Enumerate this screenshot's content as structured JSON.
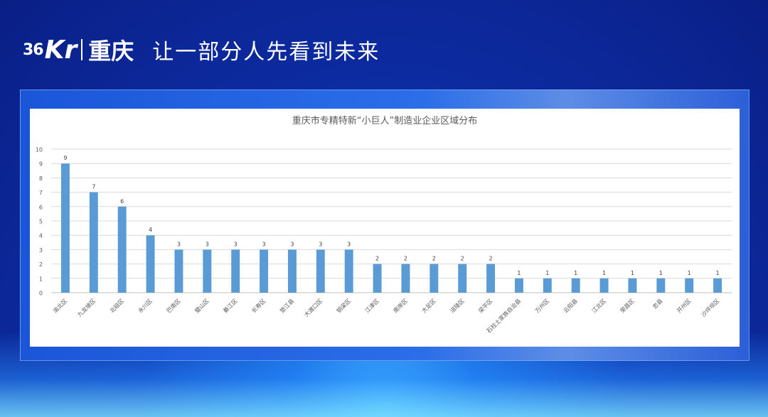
{
  "header": {
    "logo_36": "36",
    "logo_kr": "Kr",
    "logo_city": "重庆",
    "slogan": "让一部分人先看到未来"
  },
  "chart_data": {
    "type": "bar",
    "title": "重庆市专精特新“小巨人”制造业企业区域分布",
    "categories": [
      "渝北区",
      "九龙坡区",
      "北碚区",
      "永川区",
      "巴南区",
      "璧山区",
      "綦江区",
      "长寿区",
      "垫江县",
      "大渡口区",
      "铜梁区",
      "江津区",
      "南岸区",
      "大足区",
      "涪陵区",
      "梁平区",
      "石柱土家族自治县",
      "万州区",
      "云阳县",
      "江北区",
      "荣昌区",
      "忠县",
      "开州区",
      "沙坪坝区"
    ],
    "values": [
      9,
      7,
      6,
      4,
      3,
      3,
      3,
      3,
      3,
      3,
      3,
      2,
      2,
      2,
      2,
      2,
      1,
      1,
      1,
      1,
      1,
      1,
      1,
      1
    ],
    "y_ticks": [
      0,
      1,
      2,
      3,
      4,
      5,
      6,
      7,
      8,
      9,
      10
    ],
    "ylim": [
      0,
      10
    ],
    "grid": true,
    "legend": "none",
    "bar_color": "#5b9bd5"
  }
}
